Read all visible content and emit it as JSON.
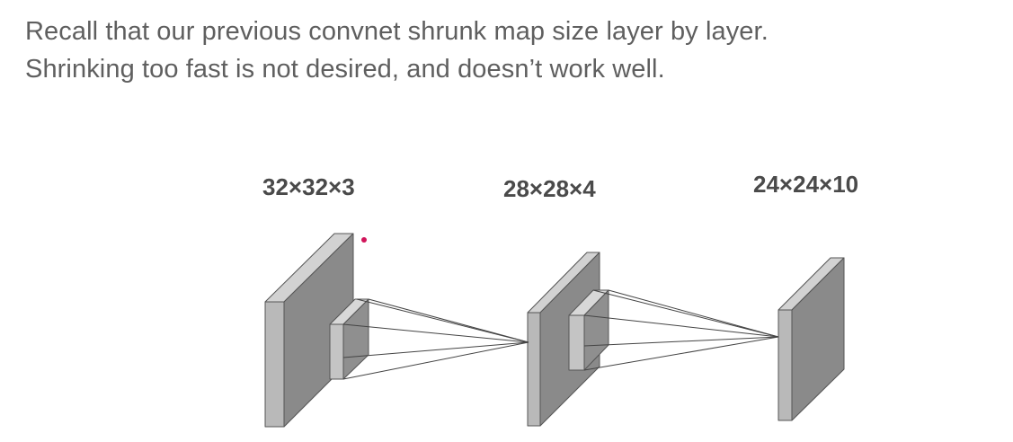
{
  "caption": {
    "line1": "Recall that our previous convnet shrunk map size layer by layer.",
    "line2": "Shrinking too fast is not desired, and doesn’t work well."
  },
  "layers": [
    {
      "id": "input",
      "label": "32×32×3"
    },
    {
      "id": "conv1",
      "label": "28×28×4"
    },
    {
      "id": "conv2",
      "label": "24×24×10"
    }
  ],
  "colors": {
    "caption_text": "#5f5f5f",
    "label_text": "#4a4a4a",
    "block_front": "#b9b9b9",
    "block_side": "#8a8a8a",
    "block_top": "#d2d2d2",
    "cursor_dot": "#d1145a"
  }
}
